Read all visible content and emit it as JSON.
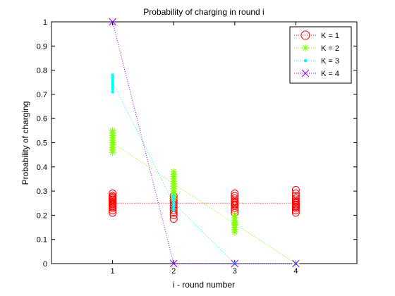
{
  "chart_data": {
    "type": "scatter",
    "title": "Probability of charging in round i",
    "xlabel": "i - round number",
    "ylabel": "Probability of charging",
    "xlim": [
      0,
      5
    ],
    "ylim": [
      0,
      1
    ],
    "xticks": [
      1,
      2,
      3,
      4
    ],
    "yticks": [
      0,
      0.1,
      0.2,
      0.3,
      0.4,
      0.5,
      0.6,
      0.7,
      0.8,
      0.9,
      1
    ],
    "grid": false,
    "legend_position": "top-right",
    "series": [
      {
        "name": "K = 1",
        "color": "#ff0000",
        "marker": "circle",
        "line_style": "dotted",
        "line_x": [
          1,
          2,
          3,
          4
        ],
        "line_y": [
          0.25,
          0.25,
          0.25,
          0.25
        ],
        "points": [
          {
            "x": 1,
            "y": [
              0.21,
              0.22,
              0.23,
              0.235,
              0.24,
              0.245,
              0.25,
              0.25,
              0.255,
              0.26,
              0.265,
              0.27,
              0.275,
              0.28,
              0.29
            ]
          },
          {
            "x": 2,
            "y": [
              0.185,
              0.2,
              0.21,
              0.22,
              0.23,
              0.24,
              0.25,
              0.26,
              0.27,
              0.28
            ]
          },
          {
            "x": 3,
            "y": [
              0.21,
              0.22,
              0.23,
              0.24,
              0.245,
              0.25,
              0.255,
              0.26,
              0.27,
              0.28,
              0.29
            ]
          },
          {
            "x": 4,
            "y": [
              0.21,
              0.22,
              0.23,
              0.235,
              0.24,
              0.245,
              0.25,
              0.255,
              0.26,
              0.27,
              0.28,
              0.29,
              0.305
            ]
          }
        ]
      },
      {
        "name": "K = 2",
        "color": "#7fff00",
        "marker": "asterisk",
        "line_style": "dotted",
        "line_x": [
          1,
          2,
          3,
          4
        ],
        "line_y": [
          0.5,
          0.33,
          0.165,
          0.0
        ],
        "points": [
          {
            "x": 1,
            "y": [
              0.46,
              0.47,
              0.48,
              0.49,
              0.5,
              0.5,
              0.51,
              0.52,
              0.53,
              0.54,
              0.55
            ]
          },
          {
            "x": 2,
            "y": [
              0.27,
              0.28,
              0.29,
              0.3,
              0.31,
              0.32,
              0.33,
              0.34,
              0.35,
              0.36,
              0.37,
              0.38
            ]
          },
          {
            "x": 3,
            "y": [
              0.13,
              0.14,
              0.15,
              0.16,
              0.165,
              0.17,
              0.18,
              0.19,
              0.2
            ]
          },
          {
            "x": 4,
            "y": [
              0.0
            ]
          }
        ]
      },
      {
        "name": "K = 3",
        "color": "#00ffff",
        "marker": "point",
        "line_style": "dotted",
        "line_x": [
          1,
          2,
          3,
          4
        ],
        "line_y": [
          0.75,
          0.25,
          0.0,
          0.0
        ],
        "points": [
          {
            "x": 1,
            "y": [
              0.71,
              0.72,
              0.73,
              0.74,
              0.75,
              0.76,
              0.77,
              0.78
            ]
          },
          {
            "x": 2,
            "y": [
              0.22,
              0.23,
              0.24,
              0.25,
              0.26,
              0.27,
              0.28
            ]
          },
          {
            "x": 3,
            "y": [
              0.0
            ]
          },
          {
            "x": 4,
            "y": [
              0.0
            ]
          }
        ]
      },
      {
        "name": "K = 4",
        "color": "#9900ff",
        "marker": "x",
        "line_style": "dotted",
        "line_x": [
          1,
          2,
          3,
          4
        ],
        "line_y": [
          1.0,
          0.0,
          0.0,
          0.0
        ],
        "points": [
          {
            "x": 1,
            "y": [
              1.0
            ]
          },
          {
            "x": 2,
            "y": [
              0.0
            ]
          },
          {
            "x": 3,
            "y": [
              0.0
            ]
          },
          {
            "x": 4,
            "y": [
              0.0
            ]
          }
        ]
      }
    ]
  }
}
